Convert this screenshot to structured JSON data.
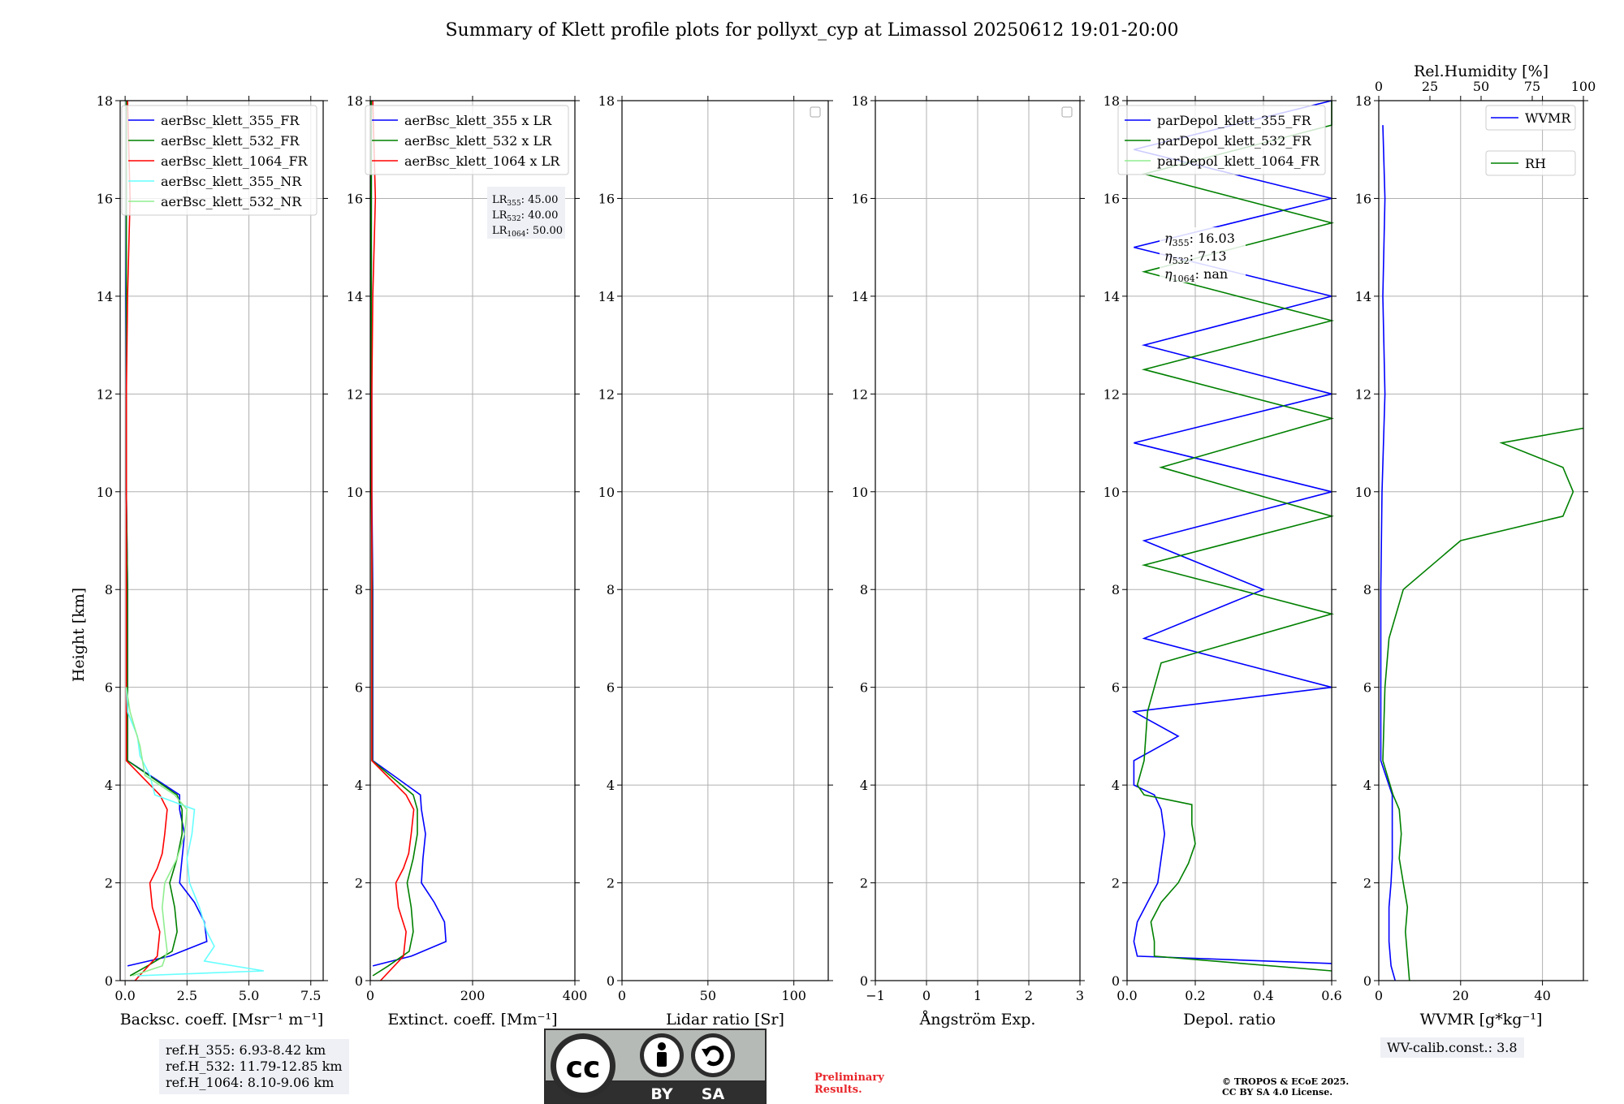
{
  "title": "Summary of Klett profile plots for pollyxt_cyp at Limassol 20250612 19:01-20:00",
  "ylabel": "Height [km]",
  "yticks": [
    "0",
    "2",
    "4",
    "6",
    "8",
    "10",
    "12",
    "14",
    "16",
    "18"
  ],
  "annotations": {
    "ref_h": [
      "ref.H_355: 6.93-8.42 km",
      "ref.H_532: 11.79-12.85 km",
      "ref.H_1064: 8.10-9.06 km"
    ],
    "wv_calib": "WV-calib.const.: 3.8",
    "preliminary": "Preliminary Results.",
    "copyright": [
      "© TROPOS & ECoE 2025.",
      "CC BY SA 4.0 License."
    ],
    "license_badge": [
      "BY",
      "SA"
    ]
  },
  "colors": {
    "blue": "#0000ff",
    "green": "#008000",
    "red": "#ff0000",
    "cyan": "#66ffff",
    "lightgreen": "#90ee90",
    "grid": "#b0b0b0"
  },
  "chart_data": [
    {
      "type": "line",
      "xlabel": "Backsc. coeff. [Msr⁻¹ m⁻¹]",
      "xlim": [
        -0.2,
        8.0
      ],
      "xticks": [
        0,
        2.5,
        5.0,
        7.5
      ],
      "xtick_labels": [
        "0.0",
        "2.5",
        "5.0",
        "7.5"
      ],
      "ylim": [
        0,
        18
      ],
      "legend": "upper-right",
      "series": [
        {
          "name": "aerBsc_klett_355_FR",
          "color": "#0000ff",
          "y": [
            0.3,
            0.5,
            0.8,
            1.2,
            1.6,
            2.0,
            2.5,
            3.0,
            3.5,
            3.8,
            4.5,
            6,
            8,
            10,
            12,
            14,
            16,
            18
          ],
          "x": [
            0.1,
            1.8,
            3.3,
            3.2,
            2.8,
            2.2,
            2.3,
            2.4,
            2.2,
            2.2,
            0.1,
            0.1,
            0.1,
            0.05,
            0.05,
            0.03,
            0.05,
            0.05
          ]
        },
        {
          "name": "aerBsc_klett_532_FR",
          "color": "#008000",
          "y": [
            0.1,
            0.3,
            0.6,
            1.0,
            1.5,
            2.0,
            2.5,
            3.0,
            3.5,
            3.8,
            4.5,
            6,
            8,
            10,
            12,
            14,
            16,
            18
          ],
          "x": [
            0.2,
            0.9,
            1.9,
            2.1,
            2.0,
            1.8,
            2.1,
            2.3,
            2.3,
            2.1,
            0.1,
            0.1,
            0.1,
            0.05,
            0.05,
            0.05,
            0.05,
            0.05
          ]
        },
        {
          "name": "aerBsc_klett_1064_FR",
          "color": "#ff0000",
          "y": [
            0.0,
            0.5,
            1.0,
            1.5,
            2.0,
            2.3,
            2.6,
            3.0,
            3.5,
            3.8,
            4.5,
            6,
            8,
            10,
            12,
            14,
            16,
            18
          ],
          "x": [
            0.4,
            1.3,
            1.4,
            1.1,
            1.0,
            1.3,
            1.5,
            1.6,
            1.7,
            1.4,
            0.05,
            0.05,
            0.05,
            0.05,
            0.05,
            0.1,
            0.2,
            0.1
          ]
        },
        {
          "name": "aerBsc_klett_355_NR",
          "color": "#66ffff",
          "y": [
            0.1,
            0.2,
            0.4,
            0.7,
            1.0,
            1.5,
            2.0,
            2.5,
            3.0,
            3.5,
            3.8,
            4.2,
            4.6,
            5.0,
            5.5,
            6.0
          ],
          "x": [
            0.5,
            5.6,
            3.2,
            3.6,
            3.3,
            3.0,
            2.6,
            2.5,
            2.7,
            2.8,
            1.2,
            1.0,
            0.6,
            0.5,
            0.1,
            0.05
          ]
        },
        {
          "name": "aerBsc_klett_532_NR",
          "color": "#90ee90",
          "y": [
            0.1,
            0.3,
            0.6,
            1.0,
            1.5,
            2.0,
            2.5,
            3.0,
            3.5,
            3.8,
            4.2,
            4.8,
            5.5,
            6.0
          ],
          "x": [
            0.3,
            1.5,
            1.7,
            1.6,
            1.5,
            1.6,
            2.1,
            2.4,
            2.5,
            2.0,
            0.8,
            0.6,
            0.2,
            0.05
          ]
        }
      ]
    },
    {
      "type": "line",
      "xlabel": "Extinct. coeff. [Mm⁻¹]",
      "xlim": [
        0,
        400
      ],
      "xticks": [
        0,
        200,
        400
      ],
      "xtick_labels": [
        "0",
        "200",
        "400"
      ],
      "ylim": [
        0,
        18
      ],
      "legend": "upper-right",
      "lr_labels": [
        {
          "name": "LR",
          "sub": "355",
          "text": ": 45.00"
        },
        {
          "name": "LR",
          "sub": "532",
          "text": ": 40.00"
        },
        {
          "name": "LR",
          "sub": "1064",
          "text": ": 50.00"
        }
      ],
      "series": [
        {
          "name": "aerBsc_klett_355 x LR",
          "color": "#0000ff",
          "y": [
            0.3,
            0.5,
            0.8,
            1.2,
            1.6,
            2.0,
            2.5,
            3.0,
            3.5,
            3.8,
            4.5,
            6,
            8,
            10,
            12,
            14,
            16,
            18
          ],
          "x": [
            5,
            80,
            148,
            145,
            125,
            100,
            103,
            108,
            100,
            98,
            5,
            5,
            5,
            3,
            3,
            2,
            2,
            2
          ]
        },
        {
          "name": "aerBsc_klett_532 x LR",
          "color": "#008000",
          "y": [
            0.1,
            0.3,
            0.6,
            1.0,
            1.5,
            2.0,
            2.5,
            3.0,
            3.5,
            3.8,
            4.5,
            6,
            8,
            10,
            12,
            14,
            16,
            18
          ],
          "x": [
            5,
            35,
            76,
            84,
            80,
            72,
            84,
            92,
            92,
            84,
            4,
            4,
            4,
            2,
            2,
            2,
            2,
            2
          ]
        },
        {
          "name": "aerBsc_klett_1064 x LR",
          "color": "#ff0000",
          "y": [
            0.0,
            0.5,
            1.0,
            1.5,
            2.0,
            2.3,
            2.6,
            3.0,
            3.5,
            3.8,
            4.5,
            6,
            8,
            10,
            12,
            14,
            16,
            18
          ],
          "x": [
            20,
            65,
            70,
            55,
            50,
            65,
            75,
            80,
            85,
            70,
            3,
            3,
            3,
            3,
            3,
            5,
            10,
            5
          ]
        }
      ]
    },
    {
      "type": "line",
      "xlabel": "Lidar ratio [Sr]",
      "xlim": [
        0,
        120
      ],
      "xticks": [
        0,
        50,
        100
      ],
      "xtick_labels": [
        "0",
        "50",
        "100"
      ],
      "ylim": [
        0,
        18
      ],
      "legend": "upper-right",
      "series": []
    },
    {
      "type": "line",
      "xlabel": "Ångström Exp.",
      "xlim": [
        -1,
        3
      ],
      "xticks": [
        -1,
        0,
        1,
        2,
        3
      ],
      "xtick_labels": [
        "−1",
        "0",
        "1",
        "2",
        "3"
      ],
      "ylim": [
        0,
        18
      ],
      "legend": "upper-right",
      "series": []
    },
    {
      "type": "line",
      "xlabel": "Depol. ratio",
      "xlim": [
        0,
        0.6
      ],
      "xticks": [
        0,
        0.2,
        0.4,
        0.6
      ],
      "xtick_labels": [
        "0.0",
        "0.2",
        "0.4",
        "0.6"
      ],
      "ylim": [
        0,
        18
      ],
      "legend": "upper-right",
      "eta_labels": [
        {
          "name": "η",
          "sub": "355",
          "text": ": 16.03"
        },
        {
          "name": "η",
          "sub": "532",
          "text": ": 7.13"
        },
        {
          "name": "η",
          "sub": "1064",
          "text": ": nan"
        }
      ],
      "series": [
        {
          "name": "parDepol_klett_355_FR",
          "color": "#0000ff",
          "y": [
            0.35,
            0.5,
            0.8,
            1.2,
            1.6,
            2.0,
            2.5,
            3.0,
            3.5,
            3.8,
            4.0,
            4.5,
            5.0,
            5.5,
            6.0,
            7.0,
            8.0,
            9.0,
            10.0,
            11.0,
            12.0,
            13.0,
            14.0,
            15.0,
            16.0,
            17.0,
            18.0
          ],
          "x": [
            0.6,
            0.03,
            0.02,
            0.03,
            0.06,
            0.09,
            0.1,
            0.11,
            0.1,
            0.08,
            0.02,
            0.02,
            0.15,
            0.02,
            0.6,
            0.05,
            0.4,
            0.05,
            0.6,
            0.02,
            0.6,
            0.05,
            0.6,
            0.02,
            0.6,
            0.02,
            0.6
          ]
        },
        {
          "name": "parDepol_klett_532_FR",
          "color": "#008000",
          "y": [
            0.2,
            0.5,
            0.8,
            1.2,
            1.6,
            2.0,
            2.4,
            2.8,
            3.2,
            3.6,
            3.8,
            4.0,
            4.5,
            5.5,
            6.5,
            7.5,
            8.5,
            9.5,
            10.5,
            11.5,
            12.5,
            13.5,
            14.5,
            15.5,
            16.5,
            17.5,
            18.0
          ],
          "x": [
            0.6,
            0.08,
            0.08,
            0.07,
            0.1,
            0.15,
            0.18,
            0.2,
            0.19,
            0.19,
            0.05,
            0.03,
            0.05,
            0.06,
            0.1,
            0.6,
            0.05,
            0.6,
            0.1,
            0.6,
            0.05,
            0.6,
            0.05,
            0.6,
            0.05,
            0.6,
            0.6
          ]
        },
        {
          "name": "parDepol_klett_1064_FR",
          "color": "#90ee90",
          "y": [],
          "x": []
        }
      ]
    },
    {
      "type": "line",
      "xlabel": "WVMR [g*kg⁻¹]",
      "xlim": [
        0,
        50
      ],
      "xticks": [
        0,
        20,
        40
      ],
      "xtick_labels": [
        "0",
        "20",
        "40"
      ],
      "ylim": [
        0,
        18
      ],
      "top_axis": {
        "label": "Rel.Humidity [%]",
        "lim": [
          0,
          100
        ],
        "ticks": [
          0,
          25,
          50,
          75,
          100
        ],
        "tick_labels": [
          "0",
          "25",
          "50",
          "75",
          "100"
        ]
      },
      "legend": "upper-right",
      "series": [
        {
          "name": "WVMR",
          "color": "#0000ff",
          "y": [
            0,
            0.3,
            0.8,
            1.5,
            2.0,
            2.5,
            3.0,
            3.5,
            3.8,
            4.5,
            6,
            8,
            10,
            12,
            14,
            16,
            17.5
          ],
          "x": [
            4,
            3,
            2.5,
            2.5,
            3,
            3.3,
            3.3,
            3.3,
            3.3,
            0.5,
            0.5,
            0.5,
            0.8,
            1.5,
            1.0,
            1.5,
            1.0
          ]
        },
        {
          "name": "RH",
          "color": "#008000",
          "axis": "top",
          "y": [
            0,
            0.5,
            1.0,
            1.5,
            2.0,
            2.5,
            3.0,
            3.5,
            3.8,
            4.5,
            6.0,
            7.0,
            8.0,
            9.0,
            9.5,
            10.0,
            10.5,
            11.0,
            11.3
          ],
          "x": [
            15,
            14,
            13,
            14,
            12,
            10,
            11,
            10,
            7,
            2,
            3,
            5,
            12,
            40,
            90,
            95,
            90,
            60,
            100
          ]
        }
      ]
    }
  ]
}
